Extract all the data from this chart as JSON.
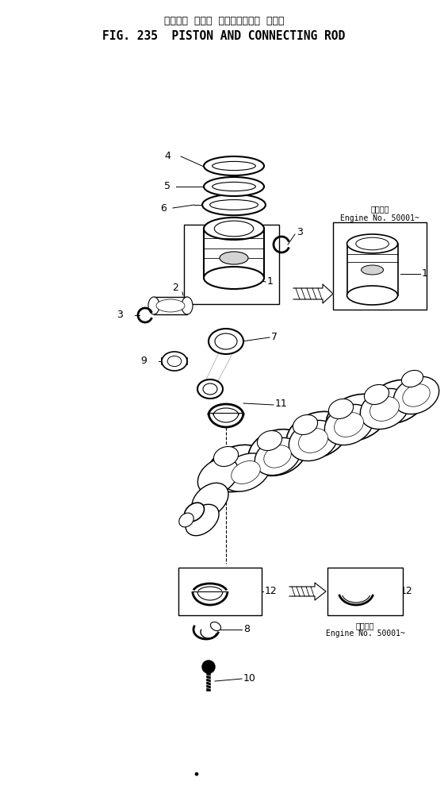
{
  "title_jp": "ピストン  および  コネクティング  ロッド",
  "title_en": "FIG. 235  PISTON AND CONNECTING ROD",
  "bg_color": "#ffffff",
  "lc": "#000000",
  "inset1_label_jp": "適用番号",
  "inset1_label_en": "Engine No. 50001~",
  "inset2_label_jp": "適用番号",
  "inset2_label_en": "Engine No. 50001~",
  "fig_width": 5.65,
  "fig_height": 10.14,
  "dpi": 100
}
